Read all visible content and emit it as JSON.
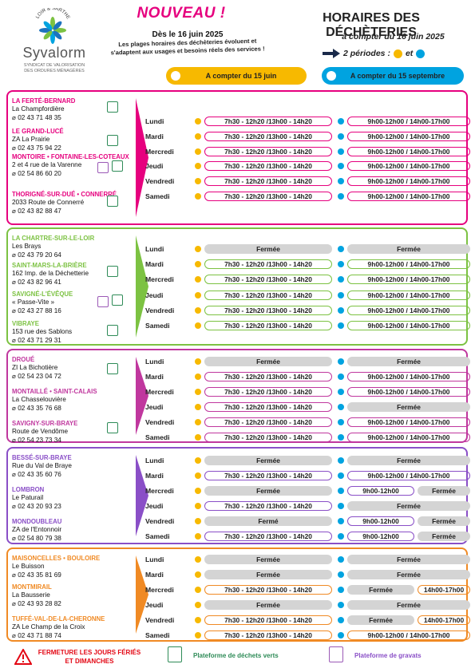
{
  "brand": {
    "name": "Syvalorm",
    "arc": "LOIR & SARTHE",
    "subtitle_l1": "SYNDICAT DE VALORISATION",
    "subtitle_l2": "DES ORDURES MÉNAGÈRES"
  },
  "news": {
    "headline": "NOUVEAU !",
    "date": "Dès le 16 juin 2025",
    "text_l1": "Les plages horaires des déchèteries évoluent et",
    "text_l2": "s'adaptent aux usages et besoins réels des services !"
  },
  "header": {
    "title": "HORAIRES DES DÉCHÈTERIES",
    "subtitle": "à compter du 16 juin 2025",
    "periods": "2 périodes :",
    "and": "et"
  },
  "columns": {
    "summer": "A compter du 15 juin",
    "winter": "A compter du 15 septembre"
  },
  "colors": {
    "pink": "#e6007e",
    "green": "#7cc242",
    "magenta": "#c0379e",
    "purple": "#8a4fc7",
    "orange": "#f08a24",
    "yellow": "#f7b900",
    "blue": "#00a3e0"
  },
  "groups": [
    {
      "color": "#e6007e",
      "sites": [
        {
          "name": "LA FERTÉ-BERNARD",
          "address": "La Champfordière",
          "phone": "02 43 71 48 35"
        },
        {
          "name": "LE GRAND-LUCÉ",
          "address": "ZA La Prairie",
          "phone": "02 43 75 94 22"
        },
        {
          "name": "MONTOIRE • FONTAINE-LES-COTEAUX",
          "address": "2 et 4 rue de la Varenne",
          "phone": "02 54 86 60 20"
        },
        {
          "name": "THORIGNÉ-SUR-DUÉ • CONNERRÉ",
          "address": "2033 Route de Connerré",
          "phone": "02 43 82 88 47"
        }
      ],
      "rows": [
        {
          "day": "Lundi",
          "summer": "7h30 - 12h20 /13h00 - 14h20",
          "winter": "9h00-12h00 / 14h00-17h00"
        },
        {
          "day": "Mardi",
          "summer": "7h30 - 12h20 /13h00 - 14h20",
          "winter": "9h00-12h00 / 14h00-17h00"
        },
        {
          "day": "Mercredi",
          "summer": "7h30 - 12h20 /13h00 - 14h20",
          "winter": "9h00-12h00 / 14h00-17h00"
        },
        {
          "day": "Jeudi",
          "summer": "7h30 - 12h20 /13h00 - 14h20",
          "winter": "9h00-12h00 / 14h00-17h00"
        },
        {
          "day": "Vendredi",
          "summer": "7h30 - 12h20 /13h00 - 14h20",
          "winter": "9h00-12h00 / 14h00-17h00"
        },
        {
          "day": "Samedi",
          "summer": "7h30 - 12h20 /13h00 - 14h20",
          "winter": "9h00-12h00 / 14h00-17h00"
        }
      ]
    },
    {
      "color": "#7cc242",
      "sites": [
        {
          "name": "LA CHARTRE-SUR-LE-LOIR",
          "address": "Les Brays",
          "phone": "02 43 79 20 64"
        },
        {
          "name": "SAINT-MARS-LA-BRIÈRE",
          "address": "162 Imp. de la Déchetterie",
          "phone": "02 43 82 96 41"
        },
        {
          "name": "SAVIGNÉ-L'ÉVÊQUE",
          "address": "« Passe-Vite »",
          "phone": "02 43 27 88 16"
        },
        {
          "name": "VIBRAYE",
          "address": "153 rue des Sablons",
          "phone": "02 43 71 29 31"
        }
      ],
      "rows": [
        {
          "day": "Lundi",
          "summer": "Fermée",
          "winter": "Fermée"
        },
        {
          "day": "Mardi",
          "summer": "7h30 - 12h20 /13h00 - 14h20",
          "winter": "9h00-12h00 / 14h00-17h00"
        },
        {
          "day": "Mercredi",
          "summer": "7h30 - 12h20 /13h00 - 14h20",
          "winter": "9h00-12h00 / 14h00-17h00"
        },
        {
          "day": "Jeudi",
          "summer": "7h30 - 12h20 /13h00 - 14h20",
          "winter": "9h00-12h00 / 14h00-17h00"
        },
        {
          "day": "Vendredi",
          "summer": "7h30 - 12h20 /13h00 - 14h20",
          "winter": "9h00-12h00 / 14h00-17h00"
        },
        {
          "day": "Samedi",
          "summer": "7h30 - 12h20 /13h00 - 14h20",
          "winter": "9h00-12h00 / 14h00-17h00"
        }
      ]
    },
    {
      "color": "#c0379e",
      "sites": [
        {
          "name": "DROUÉ",
          "address": "ZI La Bichotière",
          "phone": "02 54 23 04 72"
        },
        {
          "name": "MONTAILLÉ • SAINT-CALAIS",
          "address": "La Chasselouvière",
          "phone": "02 43 35 76 68"
        },
        {
          "name": "SAVIGNY-SUR-BRAYE",
          "address": "Route de Vendôme",
          "phone": "02 54 23 73 34"
        }
      ],
      "rows": [
        {
          "day": "Lundi",
          "summer": "Fermée",
          "winter": "Fermée"
        },
        {
          "day": "Mardi",
          "summer": "7h30 - 12h20 /13h00 - 14h20",
          "winter": "9h00-12h00 / 14h00-17h00"
        },
        {
          "day": "Mercredi",
          "summer": "7h30 - 12h20 /13h00 - 14h20",
          "winter": "9h00-12h00 / 14h00-17h00"
        },
        {
          "day": "Jeudi",
          "summer": "7h30 - 12h20 /13h00 - 14h20",
          "winter": "Fermée"
        },
        {
          "day": "Vendredi",
          "summer": "7h30 - 12h20 /13h00 - 14h20",
          "winter": "9h00-12h00 / 14h00-17h00"
        },
        {
          "day": "Samedi",
          "summer": "7h30 - 12h20 /13h00 - 14h20",
          "winter": "9h00-12h00 / 14h00-17h00"
        }
      ]
    },
    {
      "color": "#8a4fc7",
      "sites": [
        {
          "name": "BESSÉ-SUR-BRAYE",
          "address": "Rue du Val de Braye",
          "phone": "02 43 35 60 76"
        },
        {
          "name": "LOMBRON",
          "address": "Le Paturail",
          "phone": "02 43 20 93 23"
        },
        {
          "name": "MONDOUBLEAU",
          "address": "ZA de l'Entonnoir",
          "phone": "02 54 80 79 38"
        }
      ],
      "rows": [
        {
          "day": "Lundi",
          "summer": "Fermée",
          "winter": "Fermée"
        },
        {
          "day": "Mardi",
          "summer": "7h30 - 12h20 /13h00 - 14h20",
          "winter": "9h00-12h00 / 14h00-17h00"
        },
        {
          "day": "Mercredi",
          "summer": "Fermée",
          "winter": "9h00-12h00",
          "winter2": "Fermée"
        },
        {
          "day": "Jeudi",
          "summer": "7h30 - 12h20 /13h00 - 14h20",
          "winter": "Fermée"
        },
        {
          "day": "Vendredi",
          "summer": "Fermé",
          "winter": "9h00-12h00",
          "winter2": "Fermée"
        },
        {
          "day": "Samedi",
          "summer": "7h30 - 12h20 /13h00 - 14h20",
          "winter": "9h00-12h00",
          "winter2": "Fermée"
        }
      ]
    },
    {
      "color": "#f08a24",
      "sites": [
        {
          "name": "MAISONCELLES • BOULOIRE",
          "address": "Le Buisson",
          "phone": "02 43 35 81 69"
        },
        {
          "name": "MONTMIRAIL",
          "address": "La Bausserie",
          "phone": "02 43 93 28 82"
        },
        {
          "name": "TUFFÉ-VAL-DE-LA-CHERONNE",
          "address": "ZA Le Champ de la Croix",
          "phone": "02 43 71 88 74"
        }
      ],
      "rows": [
        {
          "day": "Lundi",
          "summer": "Fermée",
          "winter": "Fermée"
        },
        {
          "day": "Mardi",
          "summer": "Fermée",
          "winter": "Fermée"
        },
        {
          "day": "Mercredi",
          "summer": "7h30 - 12h20 /13h00 - 14h20",
          "winter": "Fermée",
          "winter2": "14h00-17h00"
        },
        {
          "day": "Jeudi",
          "summer": "Fermée",
          "winter": "Fermée"
        },
        {
          "day": "Vendredi",
          "summer": "7h30 - 12h20 /13h00 - 14h20",
          "winter": "Fermée",
          "winter2": "14h00-17h00"
        },
        {
          "day": "Samedi",
          "summer": "7h30 - 12h20 /13h00 - 14h20",
          "winter": "9h00-12h00 / 14h00-17h00"
        }
      ]
    }
  ],
  "footer": {
    "warning_l1": "FERMETURE LES JOURS FÉRIÉS",
    "warning_l2": "ET DIMANCHES",
    "green_label": "Plateforme de déchets verts",
    "gravel_label": "Plateforme de gravats"
  }
}
